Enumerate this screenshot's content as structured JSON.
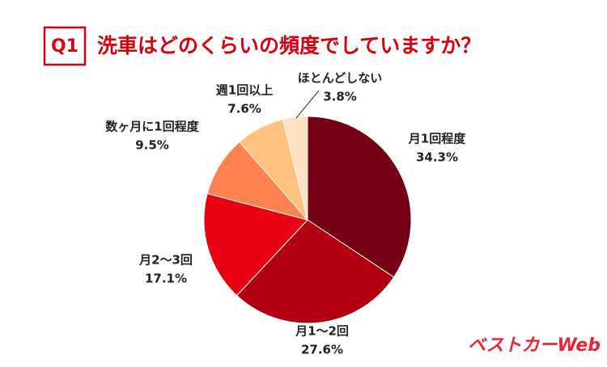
{
  "chart_data": {
    "type": "pie",
    "badge": "Q1",
    "title": "洗車はどのくらいの頻度でしていますか？",
    "categories": [
      "月1回程度",
      "月1～2回",
      "月2～3回",
      "数ヶ月に1回程度",
      "週1回以上",
      "ほとんどしない"
    ],
    "values": [
      34.3,
      27.6,
      17.1,
      9.5,
      7.6,
      3.8
    ],
    "value_labels": [
      "34.3%",
      "27.6%",
      "17.1%",
      "9.5%",
      "7.6%",
      "3.8%"
    ],
    "colors": [
      "#760014",
      "#b0000f",
      "#e60012",
      "#ff8250",
      "#ffc27e",
      "#fde1c2"
    ],
    "watermark": "ベストカーWeb"
  }
}
